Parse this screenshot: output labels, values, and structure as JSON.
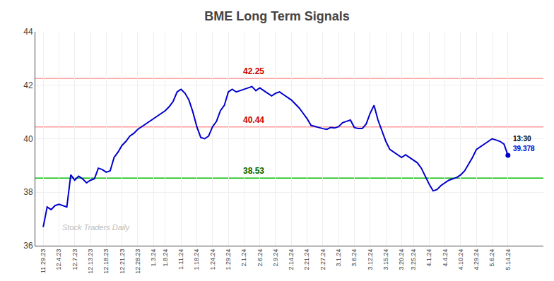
{
  "chart_data": {
    "type": "line",
    "title": "BME Long Term Signals",
    "categories": [
      "11.29.23",
      null,
      null,
      null,
      "12.4.23",
      null,
      null,
      null,
      "12.7.23",
      null,
      null,
      null,
      "12.13.23",
      null,
      null,
      null,
      "12.18.23",
      null,
      null,
      null,
      "12.21.23",
      null,
      null,
      null,
      "12.28.23",
      null,
      null,
      null,
      "1.3.24",
      null,
      null,
      "1.8.24",
      null,
      null,
      null,
      "1.11.24",
      null,
      null,
      null,
      "1.18.24",
      null,
      null,
      null,
      "1.24.24",
      null,
      null,
      null,
      "1.29.24",
      null,
      null,
      null,
      "2.1.24",
      null,
      null,
      null,
      "2.6.24",
      null,
      null,
      null,
      "2.9.24",
      null,
      null,
      null,
      "2.14.24",
      null,
      null,
      null,
      "2.21.24",
      null,
      null,
      null,
      "2.27.24",
      null,
      null,
      null,
      "3.1.24",
      null,
      null,
      null,
      "3.6.24",
      null,
      null,
      null,
      "3.12.24",
      null,
      null,
      null,
      "3.15.24",
      null,
      null,
      null,
      "3.20.24",
      null,
      null,
      "3.25.24",
      null,
      null,
      null,
      "4.1.24",
      null,
      null,
      null,
      "4.4.24",
      null,
      null,
      null,
      "4.10.24",
      null,
      null,
      null,
      "4.29.24",
      null,
      null,
      null,
      "5.6.24",
      null,
      null,
      null,
      "5.14.24"
    ],
    "values": [
      36.7,
      37.45,
      37.35,
      37.5,
      37.55,
      37.5,
      37.45,
      38.65,
      38.45,
      38.6,
      38.5,
      38.35,
      38.45,
      38.5,
      38.9,
      38.85,
      38.75,
      38.8,
      39.3,
      39.5,
      39.75,
      39.9,
      40.1,
      40.2,
      40.35,
      40.45,
      40.55,
      40.65,
      40.75,
      40.85,
      40.95,
      41.05,
      41.2,
      41.4,
      41.75,
      41.85,
      41.7,
      41.45,
      41.0,
      40.45,
      40.05,
      40.0,
      40.1,
      40.45,
      40.65,
      41.05,
      41.25,
      41.75,
      41.85,
      41.75,
      41.8,
      41.85,
      41.9,
      41.95,
      41.8,
      41.9,
      41.8,
      41.7,
      41.6,
      41.7,
      41.75,
      41.65,
      41.55,
      41.45,
      41.3,
      41.15,
      40.95,
      40.75,
      40.5,
      40.45,
      40.42,
      40.38,
      40.35,
      40.42,
      40.4,
      40.45,
      40.6,
      40.65,
      40.7,
      40.42,
      40.38,
      40.38,
      40.55,
      40.95,
      41.25,
      40.7,
      40.3,
      39.9,
      39.6,
      39.5,
      39.4,
      39.3,
      39.4,
      39.3,
      39.2,
      39.1,
      38.9,
      38.6,
      38.3,
      38.05,
      38.1,
      38.25,
      38.35,
      38.45,
      38.5,
      38.55,
      38.65,
      38.8,
      39.05,
      39.3,
      39.6,
      39.7,
      39.8,
      39.9,
      40.0,
      39.95,
      39.9,
      39.8,
      39.378
    ],
    "color": "#0000cc",
    "ylim": [
      36,
      44
    ],
    "yticks": [
      36,
      38,
      40,
      42,
      44
    ],
    "grid": true,
    "reference_lines": [
      {
        "value": 42.25,
        "color": "#ff9999",
        "label": "42.25",
        "label_color": "#cc0000"
      },
      {
        "value": 40.44,
        "color": "#ff9999",
        "label": "40.44",
        "label_color": "#cc0000"
      },
      {
        "value": 38.53,
        "color": "#00bb00",
        "label": "38.53",
        "label_color": "#006600"
      }
    ],
    "last_point": {
      "time_label": "13:30",
      "price_label": "39.378",
      "color": "#0000cc",
      "marker": "circle"
    },
    "watermark": {
      "text": "Stock Traders Daily",
      "color": "#bbbbbb"
    }
  }
}
